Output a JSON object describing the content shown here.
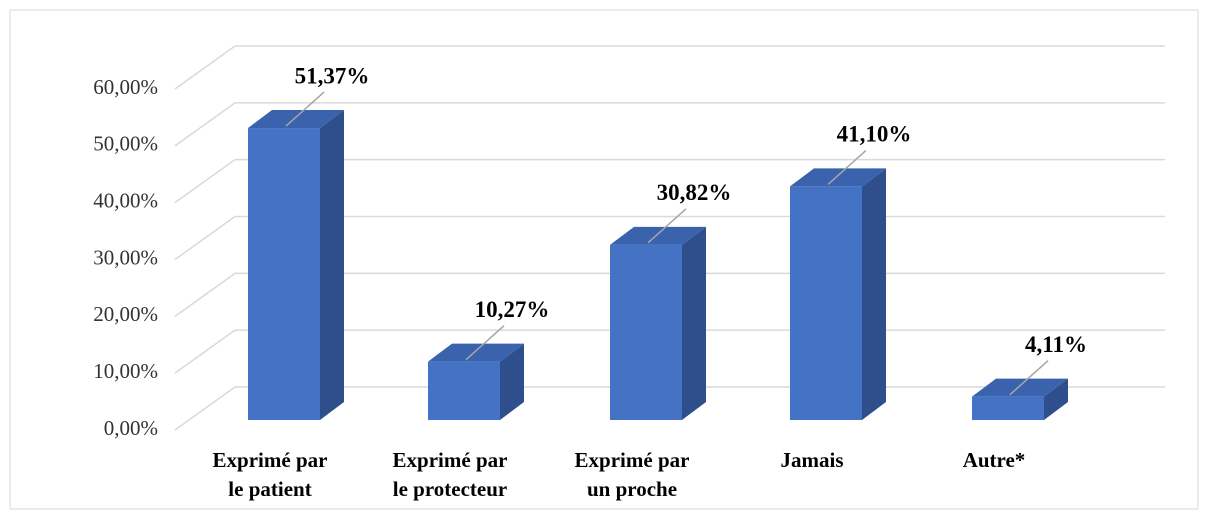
{
  "chart_data": {
    "type": "bar3d",
    "categories": [
      [
        "Exprimé par",
        "le patient"
      ],
      [
        "Exprimé par",
        "le protecteur"
      ],
      [
        "Exprimé par",
        "un proche"
      ],
      [
        "Jamais"
      ],
      [
        "Autre*"
      ]
    ],
    "values": [
      51.37,
      10.27,
      30.82,
      41.1,
      4.11
    ],
    "value_labels": [
      "51,37%",
      "10,27%",
      "30,82%",
      "41,10%",
      "4,11%"
    ],
    "color": "#4472c4",
    "ylim": [
      0,
      60
    ],
    "yticks": [
      {
        "value": 0,
        "label": "0,00%"
      },
      {
        "value": 10,
        "label": "10,00%"
      },
      {
        "value": 20,
        "label": "20,00%"
      },
      {
        "value": 30,
        "label": "30,00%"
      },
      {
        "value": 40,
        "label": "40,00%"
      },
      {
        "value": 50,
        "label": "50,00%"
      },
      {
        "value": 60,
        "label": "60,00%"
      }
    ],
    "grid": true
  }
}
